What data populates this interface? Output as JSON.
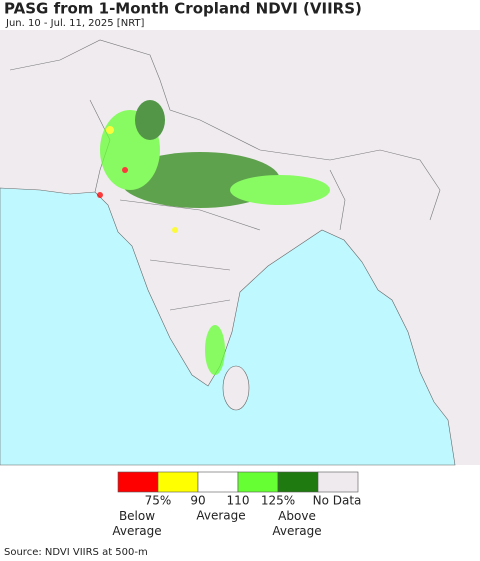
{
  "header": {
    "title": "PASG from 1-Month Cropland NDVI (VIIRS)",
    "subtitle": "Jun. 10 - Jul. 11, 2025 [NRT]"
  },
  "legend": {
    "colors": [
      "#ff0000",
      "#ffff00",
      "#ffffff",
      "#66ff33",
      "#1f7a10",
      "#eeeaee"
    ],
    "ticks": [
      "75%",
      "90",
      "110",
      "125%",
      "No Data"
    ],
    "groups": [
      "Below Average",
      "Average",
      "Above Average"
    ]
  },
  "footer": {
    "source": "Source: NDVI VIIRS at 500-m"
  }
}
